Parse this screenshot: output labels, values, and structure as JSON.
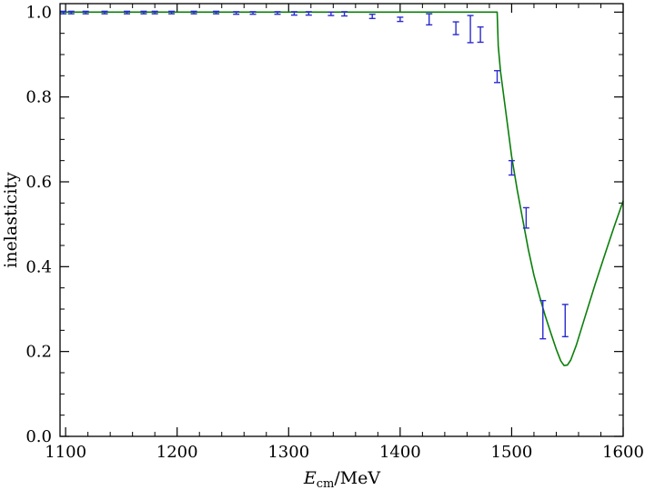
{
  "chart_data": {
    "type": "line",
    "xlabel_main": "E",
    "xlabel_sub": "cm",
    "xlabel_unit": "/MeV",
    "ylabel": "inelasticity",
    "xlim": [
      1095,
      1600
    ],
    "ylim": [
      0.0,
      1.02
    ],
    "x_ticks": [
      1100,
      1200,
      1300,
      1400,
      1500,
      1600
    ],
    "x_tick_labels": [
      "1100",
      "1200",
      "1300",
      "1400",
      "1500",
      "1600"
    ],
    "y_ticks": [
      0.0,
      0.2,
      0.4,
      0.6,
      0.8,
      1.0
    ],
    "y_tick_labels": [
      "0.0",
      "0.2",
      "0.4",
      "0.6",
      "0.8",
      "1.0"
    ],
    "x_minor_step": 20,
    "y_minor_step": 0.05,
    "grid": false,
    "series": [
      {
        "kind": "errorbar",
        "color": "#2b2bd0",
        "points": [
          {
            "x": 1098,
            "y": 0.999,
            "err": 0.003
          },
          {
            "x": 1105,
            "y": 0.999,
            "err": 0.003
          },
          {
            "x": 1118,
            "y": 0.999,
            "err": 0.003
          },
          {
            "x": 1135,
            "y": 0.999,
            "err": 0.003
          },
          {
            "x": 1155,
            "y": 0.999,
            "err": 0.003
          },
          {
            "x": 1170,
            "y": 0.999,
            "err": 0.003
          },
          {
            "x": 1180,
            "y": 0.999,
            "err": 0.003
          },
          {
            "x": 1195,
            "y": 0.999,
            "err": 0.003
          },
          {
            "x": 1215,
            "y": 0.999,
            "err": 0.003
          },
          {
            "x": 1235,
            "y": 0.999,
            "err": 0.003
          },
          {
            "x": 1253,
            "y": 0.998,
            "err": 0.003
          },
          {
            "x": 1268,
            "y": 0.998,
            "err": 0.003
          },
          {
            "x": 1290,
            "y": 0.998,
            "err": 0.003
          },
          {
            "x": 1305,
            "y": 0.997,
            "err": 0.004
          },
          {
            "x": 1318,
            "y": 0.997,
            "err": 0.004
          },
          {
            "x": 1338,
            "y": 0.996,
            "err": 0.004
          },
          {
            "x": 1350,
            "y": 0.996,
            "err": 0.005
          },
          {
            "x": 1375,
            "y": 0.99,
            "err": 0.005
          },
          {
            "x": 1400,
            "y": 0.983,
            "err": 0.005
          },
          {
            "x": 1426,
            "y": 0.983,
            "err": 0.013
          },
          {
            "x": 1450,
            "y": 0.962,
            "err": 0.015
          },
          {
            "x": 1463,
            "y": 0.96,
            "err": 0.032
          },
          {
            "x": 1472,
            "y": 0.947,
            "err": 0.018
          },
          {
            "x": 1487,
            "y": 0.848,
            "err": 0.014
          },
          {
            "x": 1500,
            "y": 0.633,
            "err": 0.017
          },
          {
            "x": 1513,
            "y": 0.515,
            "err": 0.024
          },
          {
            "x": 1528,
            "y": 0.275,
            "err": 0.045
          },
          {
            "x": 1548,
            "y": 0.273,
            "err": 0.038
          }
        ]
      },
      {
        "kind": "line",
        "color": "#0a7f0a",
        "points": [
          [
            1095,
            1.0
          ],
          [
            1487,
            1.0
          ],
          [
            1488,
            0.92
          ],
          [
            1490,
            0.86
          ],
          [
            1495,
            0.76
          ],
          [
            1500,
            0.66
          ],
          [
            1505,
            0.58
          ],
          [
            1510,
            0.51
          ],
          [
            1515,
            0.44
          ],
          [
            1520,
            0.38
          ],
          [
            1525,
            0.33
          ],
          [
            1530,
            0.285
          ],
          [
            1535,
            0.245
          ],
          [
            1540,
            0.205
          ],
          [
            1544,
            0.178
          ],
          [
            1547,
            0.167
          ],
          [
            1550,
            0.168
          ],
          [
            1553,
            0.18
          ],
          [
            1558,
            0.215
          ],
          [
            1565,
            0.275
          ],
          [
            1575,
            0.36
          ],
          [
            1585,
            0.44
          ],
          [
            1592,
            0.495
          ],
          [
            1600,
            0.555
          ]
        ]
      }
    ]
  }
}
